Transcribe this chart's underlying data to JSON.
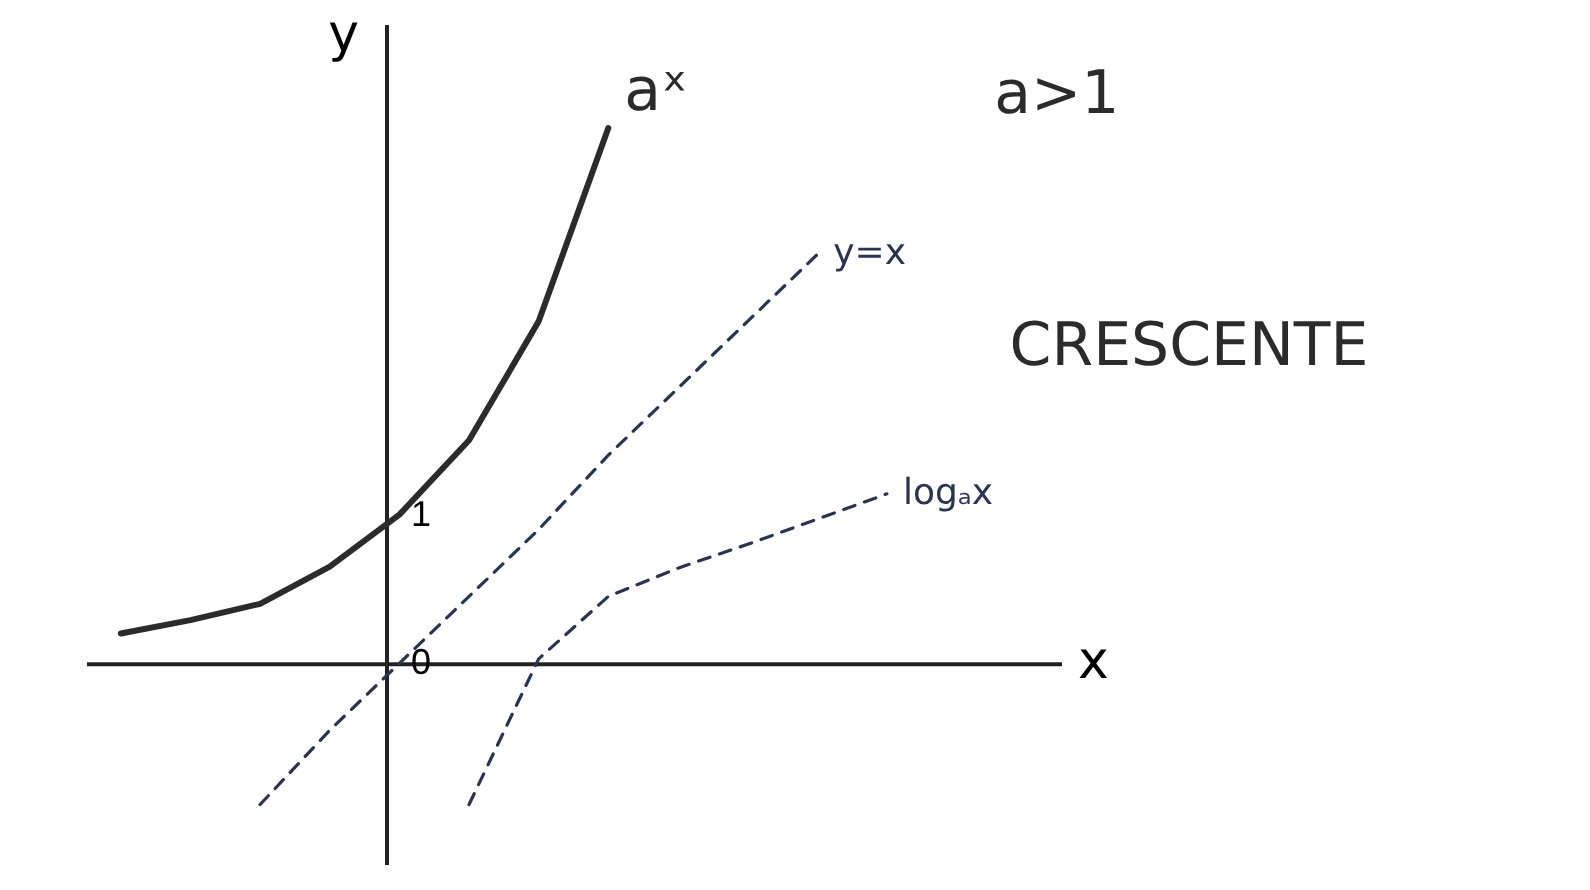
{
  "chart_data": {
    "type": "line",
    "xlabel": "x",
    "ylabel": "y",
    "categories": [
      null,
      null,
      null,
      null,
      null,
      null,
      null,
      null,
      null,
      null,
      null,
      null,
      null,
      null
    ],
    "ylim": [
      -1.35,
      4.3
    ],
    "yticks": [
      0,
      1
    ],
    "marker": "none",
    "annotations": [
      "a>1",
      "CRESCENTE"
    ],
    "series": [
      {
        "name": "aˣ",
        "color": "#2b2b2b",
        "line_style": "solid",
        "values": [
          0.2,
          0.29,
          0.4,
          0.65,
          1,
          1.5,
          2.3,
          3.6,
          null,
          null,
          null,
          null,
          null,
          null
        ]
      },
      {
        "name": "y=x",
        "color": "#2a3350",
        "line_style": "dashed",
        "values": [
          null,
          null,
          -0.95,
          -0.45,
          0,
          0.45,
          0.9,
          1.4,
          1.85,
          2.3,
          2.75,
          null,
          null,
          null
        ]
      },
      {
        "name": "logₐx",
        "color": "#2a3350",
        "line_style": "dashed",
        "values": [
          null,
          null,
          null,
          null,
          null,
          -0.95,
          0.03,
          0.45,
          0.64,
          0.8,
          0.97,
          1.14,
          null,
          null
        ]
      }
    ]
  }
}
